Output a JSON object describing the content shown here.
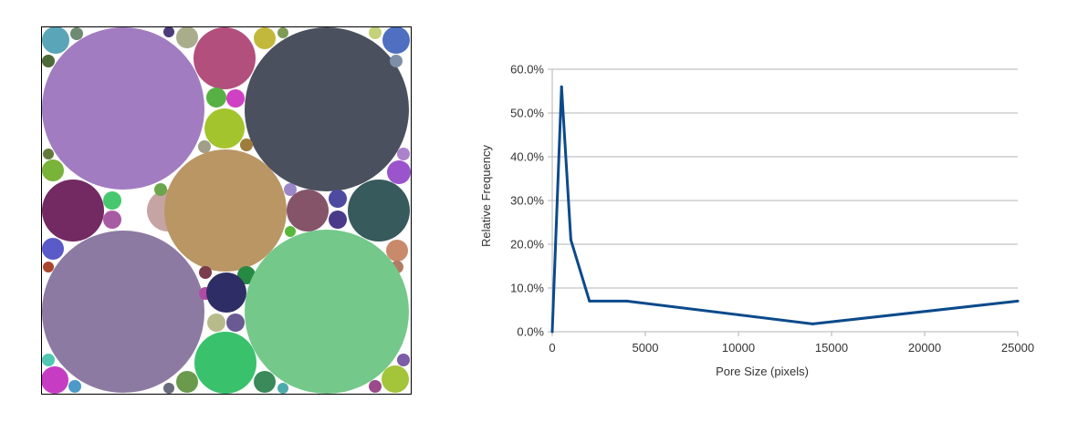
{
  "packing": {
    "background": "#ffffff",
    "border_color": "#000000",
    "circles": [
      {
        "c": "#5aa6b8"
      },
      {
        "c": "#6e8a72"
      },
      {
        "c": "#4d3b7a"
      },
      {
        "c": "#a9ad8c"
      },
      {
        "c": "#b34f7d"
      },
      {
        "c": "#c2b83c"
      },
      {
        "c": "#7d9b55"
      },
      {
        "c": "#c6d27a"
      },
      {
        "c": "#4f6fc0"
      },
      {
        "c": "#4e6a3a"
      },
      {
        "c": "#a27cc1"
      },
      {
        "c": "#4a505d"
      },
      {
        "c": "#7d8ea8"
      },
      {
        "c": "#57b043"
      },
      {
        "c": "#cf40c2"
      },
      {
        "c": "#a4c42d"
      },
      {
        "c": "#a09e88"
      },
      {
        "c": "#9e7d3c"
      },
      {
        "c": "#637a3c"
      },
      {
        "c": "#79b33a"
      },
      {
        "c": "#ad82cc"
      },
      {
        "c": "#9b55cc"
      },
      {
        "c": "#732a63"
      },
      {
        "c": "#47c86e"
      },
      {
        "c": "#c7a4a4"
      },
      {
        "c": "#a75ba3"
      },
      {
        "c": "#6aa64b"
      },
      {
        "c": "#b99664"
      },
      {
        "c": "#9b86c8"
      },
      {
        "c": "#865469"
      },
      {
        "c": "#4c4ba0"
      },
      {
        "c": "#4a3a8a"
      },
      {
        "c": "#375a5c"
      },
      {
        "c": "#59b83a"
      },
      {
        "c": "#5a5ac9"
      },
      {
        "c": "#c88a6a"
      },
      {
        "c": "#b27c64"
      },
      {
        "c": "#a9462e"
      },
      {
        "c": "#8d7aa3"
      },
      {
        "c": "#7b3c4e"
      },
      {
        "c": "#268a42"
      },
      {
        "c": "#b04aa3"
      },
      {
        "c": "#2e2d65"
      },
      {
        "c": "#74c88a"
      },
      {
        "c": "#b7ba8a"
      },
      {
        "c": "#6a5a93"
      },
      {
        "c": "#3ac16c"
      },
      {
        "c": "#51c8b4"
      },
      {
        "c": "#c63dc3"
      },
      {
        "c": "#4d9ac8"
      },
      {
        "c": "#6a6a7e"
      },
      {
        "c": "#6a9a4c"
      },
      {
        "c": "#3a8a5a"
      },
      {
        "c": "#4dabab"
      },
      {
        "c": "#9b4a8a"
      },
      {
        "c": "#a4c43a"
      },
      {
        "c": "#7d5ca8"
      }
    ]
  },
  "chart_data": {
    "type": "line",
    "title": "",
    "xlabel": "Pore Size (pixels)",
    "ylabel": "Relative Frequency",
    "xlim": [
      0,
      25000
    ],
    "ylim": [
      0,
      60
    ],
    "x_ticks": [
      0,
      5000,
      10000,
      15000,
      20000,
      25000
    ],
    "x_tick_labels": [
      "0",
      "5000",
      "10000",
      "15000",
      "20000",
      "25000"
    ],
    "y_ticks": [
      0,
      10,
      20,
      30,
      40,
      50,
      60
    ],
    "y_tick_labels": [
      "0.0%",
      "10.0%",
      "20.0%",
      "30.0%",
      "40.0%",
      "50.0%",
      "60.0%"
    ],
    "grid": true,
    "legend": "none",
    "line_color": "#0b4a8b",
    "series": [
      {
        "x": [
          0,
          500,
          1000,
          2000,
          4000,
          14000,
          25000
        ],
        "values": [
          0,
          56,
          21,
          7,
          7,
          1.8,
          7
        ]
      }
    ]
  }
}
